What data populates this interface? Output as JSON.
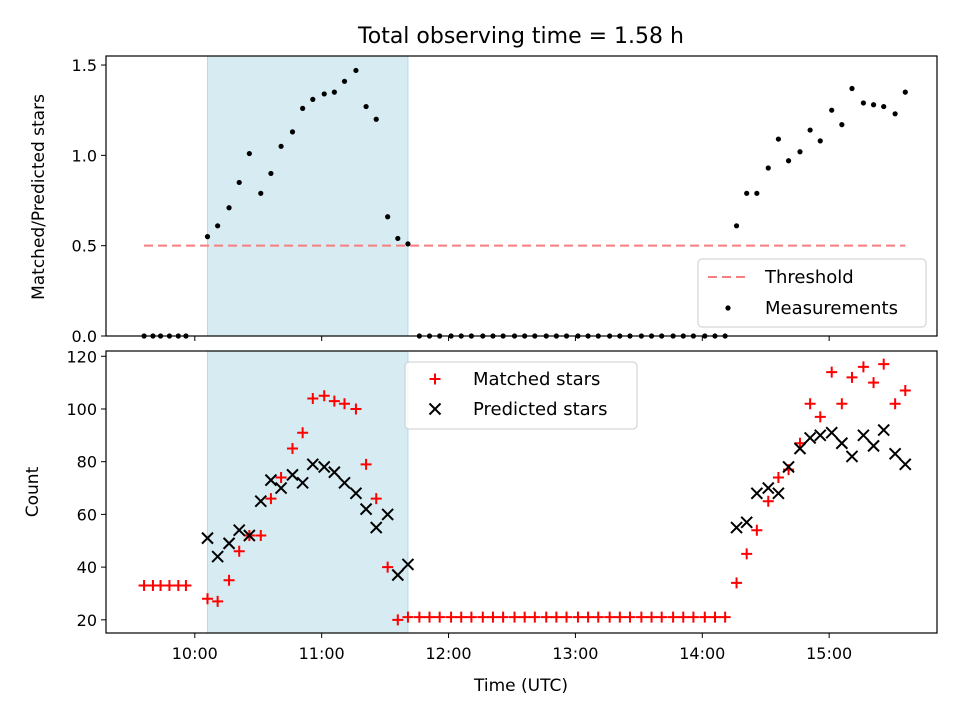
{
  "title": "Total observing time = 1.58 h",
  "chart_data": [
    {
      "type": "scatter",
      "ylabel": "Matched/Predicted stars",
      "ylim": [
        0,
        1.55
      ],
      "xlim": [
        9.3,
        15.85
      ],
      "yticks": [
        0.0,
        0.5,
        1.0,
        1.5
      ],
      "ytick_labels": [
        "0.0",
        "0.5",
        "1.0",
        "1.5"
      ],
      "shaded_region": [
        10.1,
        11.68
      ],
      "legend": {
        "position": "lower right",
        "entries": [
          "Threshold",
          "Measurements"
        ]
      },
      "threshold": {
        "name": "Threshold",
        "value": 0.5,
        "x_range": [
          9.6,
          15.6
        ],
        "color": "#f57f7f"
      },
      "measurements": {
        "name": "Measurements",
        "color": "#000000",
        "x": [
          9.6,
          9.67,
          9.73,
          9.8,
          9.87,
          9.93,
          10.1,
          10.18,
          10.27,
          10.35,
          10.43,
          10.52,
          10.6,
          10.68,
          10.77,
          10.85,
          10.93,
          11.02,
          11.1,
          11.18,
          11.27,
          11.35,
          11.43,
          11.52,
          11.6,
          11.68,
          11.77,
          11.85,
          11.93,
          12.02,
          12.1,
          12.18,
          12.27,
          12.35,
          12.43,
          12.52,
          12.6,
          12.68,
          12.77,
          12.85,
          12.93,
          13.02,
          13.1,
          13.18,
          13.27,
          13.35,
          13.43,
          13.52,
          13.6,
          13.68,
          13.77,
          13.85,
          13.93,
          14.02,
          14.1,
          14.18,
          14.27,
          14.35,
          14.43,
          14.52,
          14.6,
          14.68,
          14.77,
          14.85,
          14.93,
          15.02,
          15.1,
          15.18,
          15.27,
          15.35,
          15.43,
          15.52,
          15.6
        ],
        "y": [
          0,
          0,
          0,
          0,
          0,
          0,
          0.55,
          0.61,
          0.71,
          0.85,
          1.01,
          0.79,
          0.9,
          1.05,
          1.13,
          1.26,
          1.31,
          1.34,
          1.35,
          1.41,
          1.47,
          1.27,
          1.2,
          0.66,
          0.54,
          0.51,
          0,
          0,
          0,
          0,
          0,
          0,
          0,
          0,
          0,
          0,
          0,
          0,
          0,
          0,
          0,
          0,
          0,
          0,
          0,
          0,
          0,
          0,
          0,
          0,
          0,
          0,
          0,
          0,
          0,
          0,
          0.61,
          0.79,
          0.79,
          0.93,
          1.09,
          0.97,
          1.02,
          1.14,
          1.08,
          1.25,
          1.17,
          1.37,
          1.29,
          1.28,
          1.27,
          1.23,
          1.35
        ]
      }
    },
    {
      "type": "scatter",
      "xlabel": "Time (UTC)",
      "ylabel": "Count",
      "ylim": [
        15,
        122
      ],
      "xlim": [
        9.3,
        15.85
      ],
      "yticks": [
        20,
        40,
        60,
        80,
        100,
        120
      ],
      "ytick_labels": [
        "20",
        "40",
        "60",
        "80",
        "100",
        "120"
      ],
      "xticks": [
        10,
        11,
        12,
        13,
        14,
        15
      ],
      "xtick_labels": [
        "10:00",
        "11:00",
        "12:00",
        "13:00",
        "14:00",
        "15:00"
      ],
      "shaded_region": [
        10.1,
        11.68
      ],
      "legend": {
        "position": "upper center",
        "entries": [
          "Matched stars",
          "Predicted stars"
        ]
      },
      "series": [
        {
          "name": "Matched stars",
          "marker": "+",
          "color": "#ff0000",
          "x": [
            9.6,
            9.67,
            9.73,
            9.8,
            9.87,
            9.93,
            10.1,
            10.18,
            10.27,
            10.35,
            10.43,
            10.52,
            10.6,
            10.68,
            10.77,
            10.85,
            10.93,
            11.02,
            11.1,
            11.18,
            11.27,
            11.35,
            11.43,
            11.52,
            11.6,
            11.68,
            11.77,
            11.85,
            11.93,
            12.02,
            12.1,
            12.18,
            12.27,
            12.35,
            12.43,
            12.52,
            12.6,
            12.68,
            12.77,
            12.85,
            12.93,
            13.02,
            13.1,
            13.18,
            13.27,
            13.35,
            13.43,
            13.52,
            13.6,
            13.68,
            13.77,
            13.85,
            13.93,
            14.02,
            14.1,
            14.18,
            14.27,
            14.35,
            14.43,
            14.52,
            14.6,
            14.68,
            14.77,
            14.85,
            14.93,
            15.02,
            15.1,
            15.18,
            15.27,
            15.35,
            15.43,
            15.52,
            15.6
          ],
          "y": [
            33,
            33,
            33,
            33,
            33,
            33,
            28,
            27,
            35,
            46,
            52,
            52,
            66,
            74,
            85,
            91,
            104,
            105,
            103,
            102,
            100,
            79,
            66,
            40,
            20,
            21,
            21,
            21,
            21,
            21,
            21,
            21,
            21,
            21,
            21,
            21,
            21,
            21,
            21,
            21,
            21,
            21,
            21,
            21,
            21,
            21,
            21,
            21,
            21,
            21,
            21,
            21,
            21,
            21,
            21,
            21,
            34,
            45,
            54,
            65,
            74,
            77,
            87,
            102,
            97,
            114,
            102,
            112,
            116,
            110,
            117,
            102,
            107
          ]
        },
        {
          "name": "Predicted stars",
          "marker": "x",
          "color": "#000000",
          "x": [
            10.1,
            10.18,
            10.27,
            10.35,
            10.43,
            10.52,
            10.6,
            10.68,
            10.77,
            10.85,
            10.93,
            11.02,
            11.1,
            11.18,
            11.27,
            11.35,
            11.43,
            11.52,
            11.6,
            11.68,
            14.27,
            14.35,
            14.43,
            14.52,
            14.6,
            14.68,
            14.77,
            14.85,
            14.93,
            15.02,
            15.1,
            15.18,
            15.27,
            15.35,
            15.43,
            15.52,
            15.6
          ],
          "y": [
            51,
            44,
            49,
            54,
            52,
            65,
            73,
            70,
            75,
            72,
            79,
            78,
            76,
            72,
            68,
            62,
            55,
            60,
            37,
            41,
            55,
            57,
            68,
            70,
            68,
            78,
            85,
            89,
            90,
            91,
            87,
            82,
            90,
            86,
            92,
            83,
            79
          ]
        }
      ]
    }
  ]
}
